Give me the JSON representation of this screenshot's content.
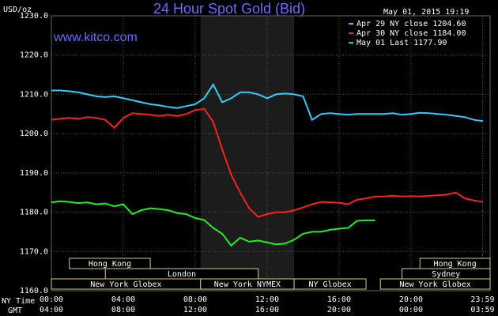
{
  "chart_data": {
    "type": "line",
    "title": "24 Hour Spot Gold (Bid)",
    "subtitle": "www.kitco.com",
    "timestamp": "May 01, 2015 19:19",
    "ylabel": "USD/oz",
    "x_row_labels": [
      "NY Time",
      "GMT"
    ],
    "x": [
      0,
      0.5,
      1,
      1.5,
      2,
      2.5,
      3,
      3.5,
      4,
      4.5,
      5,
      5.5,
      6,
      6.5,
      7,
      7.5,
      8,
      8.5,
      9,
      9.5,
      10,
      10.5,
      11,
      11.5,
      12,
      12.5,
      13,
      13.5,
      14,
      14.5,
      15,
      15.5,
      16,
      16.5,
      17,
      17.5,
      18,
      18.5,
      19,
      19.5,
      20,
      20.5,
      21,
      21.5,
      22,
      22.5,
      23,
      23.5,
      24
    ],
    "xlim": [
      0,
      24.4
    ],
    "xticks": [
      {
        "value": 0,
        "label": "00:00"
      },
      {
        "value": 4,
        "label": "04:00"
      },
      {
        "value": 8,
        "label": "08:00"
      },
      {
        "value": 12,
        "label": "12:00"
      },
      {
        "value": 16,
        "label": "16:00"
      },
      {
        "value": 20,
        "label": "20:00"
      },
      {
        "value": 23.98,
        "label": "23:59"
      }
    ],
    "gmt_labels": [
      "04:00",
      "08:00",
      "12:00",
      "16:00",
      "20:00",
      "00:00",
      "03:59"
    ],
    "ylim": [
      1160,
      1230
    ],
    "yticks": [
      {
        "value": 1160,
        "label": "1160.0"
      },
      {
        "value": 1170,
        "label": "1170.0"
      },
      {
        "value": 1180,
        "label": "1180.0"
      },
      {
        "value": 1190,
        "label": "1190.0"
      },
      {
        "value": 1200,
        "label": "1200.0"
      },
      {
        "value": 1210,
        "label": "1210.0"
      },
      {
        "value": 1220,
        "label": "1220.0"
      },
      {
        "value": 1230,
        "label": "1230.0"
      }
    ],
    "grid": true,
    "series": [
      {
        "name": "Apr 29 NY close 1204.60",
        "color": "#33ccff",
        "values": [
          1211.0,
          1211.0,
          1210.8,
          1210.5,
          1210.0,
          1209.5,
          1209.3,
          1209.5,
          1209.0,
          1208.5,
          1208.0,
          1207.5,
          1207.2,
          1206.8,
          1206.5,
          1207.0,
          1207.5,
          1209.0,
          1212.5,
          1208.0,
          1209.0,
          1210.5,
          1210.5,
          1210.0,
          1209.0,
          1210.0,
          1210.2,
          1210.0,
          1209.5,
          1203.5,
          1205.0,
          1205.2,
          1205.0,
          1204.8,
          1205.0,
          1205.0,
          1205.0,
          1205.0,
          1205.2,
          1204.8,
          1205.0,
          1205.3,
          1205.2,
          1205.0,
          1204.8,
          1204.5,
          1204.2,
          1203.5,
          1203.2
        ]
      },
      {
        "name": "Apr 30 NY close 1184.00",
        "color": "#ff2020",
        "values": [
          1203.5,
          1203.8,
          1204.0,
          1203.8,
          1204.2,
          1204.0,
          1203.5,
          1201.5,
          1204.0,
          1205.2,
          1205.0,
          1204.8,
          1204.5,
          1204.8,
          1204.5,
          1205.0,
          1206.0,
          1206.3,
          1203.0,
          1196.0,
          1189.5,
          1185.0,
          1181.0,
          1178.8,
          1179.5,
          1180.0,
          1180.0,
          1180.5,
          1181.2,
          1182.0,
          1182.6,
          1182.5,
          1182.4,
          1182.0,
          1183.2,
          1183.5,
          1184.0,
          1184.0,
          1184.2,
          1184.0,
          1184.1,
          1184.0,
          1184.2,
          1184.3,
          1184.5,
          1185.0,
          1183.5,
          1183.0,
          1182.6
        ]
      },
      {
        "name": "May 01 Last 1177.90",
        "color": "#22ee22",
        "values": [
          1182.5,
          1182.8,
          1182.6,
          1182.3,
          1182.5,
          1182.0,
          1182.2,
          1181.5,
          1182.0,
          1179.5,
          1180.5,
          1181.0,
          1180.8,
          1180.5,
          1179.8,
          1179.5,
          1178.5,
          1178.0,
          1176.0,
          1174.5,
          1171.5,
          1173.5,
          1172.5,
          1172.8,
          1172.3,
          1171.8,
          1172.0,
          1173.0,
          1174.5,
          1175.0,
          1175.0,
          1175.5,
          1175.8,
          1176.0,
          1177.8,
          1177.9,
          1177.9,
          null,
          null,
          null,
          null,
          null,
          null,
          null,
          null,
          null,
          null,
          null,
          null
        ]
      }
    ],
    "sessions": [
      {
        "name": "Hong Kong",
        "row": 0,
        "start": 1,
        "end": 5.5
      },
      {
        "name": "Hong Kong",
        "row": 0,
        "start": 20.5,
        "end": 24.4
      },
      {
        "name": "London",
        "row": 1,
        "start": 3,
        "end": 11.5
      },
      {
        "name": "Sydney",
        "row": 1,
        "start": 19.5,
        "end": 24.4
      },
      {
        "name": "New York Globex",
        "row": 2,
        "start": 0,
        "end": 8.3
      },
      {
        "name": "New York NYMEX",
        "row": 2,
        "start": 8.3,
        "end": 13.5
      },
      {
        "name": "NY Globex",
        "row": 2,
        "start": 13.5,
        "end": 17.5
      },
      {
        "name": "New York Globex",
        "row": 2,
        "start": 18.3,
        "end": 24.4
      }
    ],
    "shade_session": 5
  }
}
